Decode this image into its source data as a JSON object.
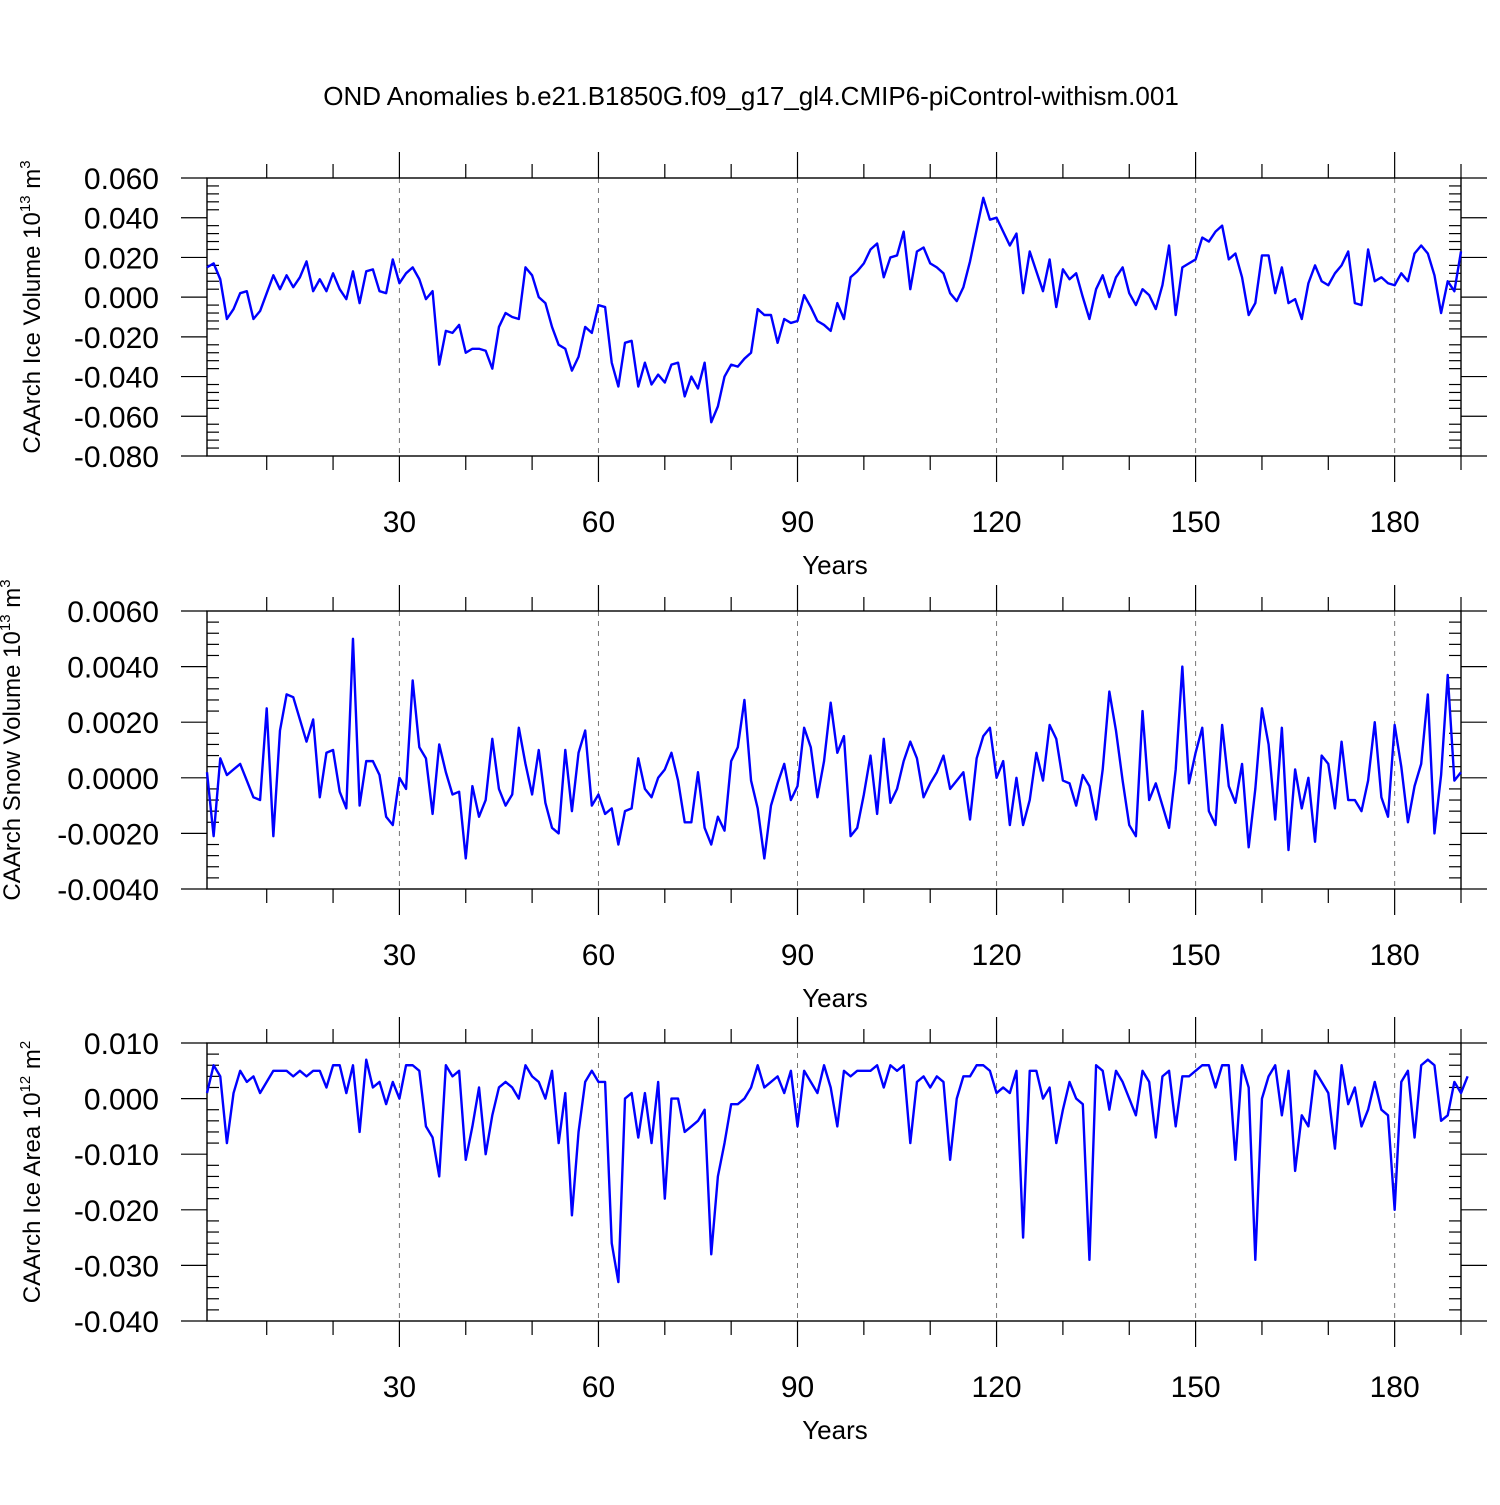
{
  "title": "OND Anomalies b.e21.B1850G.f09_g17_gl4.CMIP6-piControl-withism.001",
  "colors": {
    "line": "#0000ff",
    "grid": "#777777"
  },
  "chart_data": [
    {
      "type": "line",
      "name": "ice-volume",
      "ylabel_main": "CAArch Ice Volume 10",
      "ylabel_exp": "13",
      "ylabel_unit": " m",
      "ylabel_unit_exp": "3",
      "xlabel": "Years",
      "xlim": [
        1,
        190
      ],
      "ylim": [
        -0.08,
        0.06
      ],
      "xticks": [
        30,
        60,
        90,
        120,
        150,
        180
      ],
      "xtick_labels": [
        "30",
        "60",
        "90",
        "120",
        "150",
        "180"
      ],
      "yticks": [
        -0.08,
        -0.06,
        -0.04,
        -0.02,
        0.0,
        0.02,
        0.04,
        0.06
      ],
      "ytick_labels": [
        "-0.080",
        "-0.060",
        "-0.040",
        "-0.020",
        "0.000",
        "0.020",
        "0.040",
        "0.060"
      ],
      "x_start": 1,
      "values": [
        0.015,
        0.017,
        0.009,
        -0.011,
        -0.006,
        0.002,
        0.003,
        -0.011,
        -0.007,
        0.002,
        0.011,
        0.004,
        0.011,
        0.005,
        0.01,
        0.018,
        0.003,
        0.009,
        0.003,
        0.012,
        0.004,
        -0.001,
        0.013,
        -0.003,
        0.013,
        0.014,
        0.003,
        0.002,
        0.019,
        0.007,
        0.012,
        0.015,
        0.009,
        -0.001,
        0.003,
        -0.034,
        -0.017,
        -0.018,
        -0.014,
        -0.028,
        -0.026,
        -0.026,
        -0.027,
        -0.036,
        -0.015,
        -0.008,
        -0.01,
        -0.011,
        0.015,
        0.011,
        0.0,
        -0.003,
        -0.015,
        -0.024,
        -0.026,
        -0.037,
        -0.03,
        -0.015,
        -0.018,
        -0.004,
        -0.005,
        -0.033,
        -0.045,
        -0.023,
        -0.022,
        -0.045,
        -0.033,
        -0.044,
        -0.039,
        -0.043,
        -0.034,
        -0.033,
        -0.05,
        -0.04,
        -0.046,
        -0.033,
        -0.063,
        -0.055,
        -0.04,
        -0.034,
        -0.035,
        -0.031,
        -0.028,
        -0.006,
        -0.009,
        -0.009,
        -0.023,
        -0.011,
        -0.013,
        -0.012,
        0.001,
        -0.005,
        -0.012,
        -0.014,
        -0.017,
        -0.003,
        -0.011,
        0.01,
        0.013,
        0.017,
        0.024,
        0.027,
        0.01,
        0.02,
        0.021,
        0.033,
        0.004,
        0.023,
        0.025,
        0.017,
        0.015,
        0.012,
        0.002,
        -0.002,
        0.005,
        0.018,
        0.034,
        0.05,
        0.039,
        0.04,
        0.033,
        0.026,
        0.032,
        0.002,
        0.023,
        0.013,
        0.003,
        0.019,
        -0.005,
        0.014,
        0.009,
        0.012,
        0.0,
        -0.011,
        0.004,
        0.011,
        0.0,
        0.01,
        0.015,
        0.002,
        -0.004,
        0.004,
        0.001,
        -0.006,
        0.006,
        0.026,
        -0.009,
        0.015,
        0.017,
        0.019,
        0.03,
        0.028,
        0.033,
        0.036,
        0.019,
        0.022,
        0.01,
        -0.009,
        -0.003,
        0.021,
        0.021,
        0.002,
        0.015,
        -0.003,
        -0.001,
        -0.011,
        0.007,
        0.016,
        0.008,
        0.006,
        0.012,
        0.016,
        0.023,
        -0.003,
        -0.004,
        0.024,
        0.008,
        0.01,
        0.007,
        0.006,
        0.012,
        0.008,
        0.022,
        0.026,
        0.022,
        0.011,
        -0.008,
        0.008,
        0.003,
        0.023
      ]
    },
    {
      "type": "line",
      "name": "snow-volume",
      "ylabel_main": "CAArch Snow Volume 10",
      "ylabel_exp": "13",
      "ylabel_unit": " m",
      "ylabel_unit_exp": "3",
      "xlabel": "Years",
      "xlim": [
        1,
        190
      ],
      "ylim": [
        -0.004,
        0.006
      ],
      "xticks": [
        30,
        60,
        90,
        120,
        150,
        180
      ],
      "xtick_labels": [
        "30",
        "60",
        "90",
        "120",
        "150",
        "180"
      ],
      "yticks": [
        -0.004,
        -0.002,
        0.0,
        0.002,
        0.004,
        0.006
      ],
      "ytick_labels": [
        "-0.0040",
        "-0.0020",
        "0.0000",
        "0.0020",
        "0.0040",
        "0.0060"
      ],
      "x_start": 1,
      "values": [
        0.0002,
        -0.0021,
        0.0007,
        0.0001,
        0.0003,
        0.0005,
        -0.0001,
        -0.0007,
        -0.0008,
        0.0025,
        -0.0021,
        0.0017,
        0.003,
        0.0029,
        0.0021,
        0.0013,
        0.0021,
        -0.0007,
        0.0009,
        0.001,
        -0.0005,
        -0.0011,
        0.005,
        -0.001,
        0.0006,
        0.0006,
        0.0001,
        -0.0014,
        -0.0017,
        0.0,
        -0.0004,
        0.0035,
        0.0011,
        0.0007,
        -0.0013,
        0.0012,
        0.0002,
        -0.0006,
        -0.0005,
        -0.0029,
        -0.0003,
        -0.0014,
        -0.0008,
        0.0014,
        -0.0004,
        -0.001,
        -0.0006,
        0.0018,
        0.0005,
        -0.0006,
        0.001,
        -0.0009,
        -0.0018,
        -0.002,
        0.001,
        -0.0012,
        0.0009,
        0.0017,
        -0.001,
        -0.0006,
        -0.0013,
        -0.0011,
        -0.0024,
        -0.0012,
        -0.0011,
        0.0007,
        -0.0004,
        -0.0007,
        0.0,
        0.0003,
        0.0009,
        -0.0001,
        -0.0016,
        -0.0016,
        0.0002,
        -0.0018,
        -0.0024,
        -0.0014,
        -0.0019,
        0.0006,
        0.0011,
        0.0028,
        -0.0001,
        -0.0011,
        -0.0029,
        -0.001,
        -0.0002,
        0.0005,
        -0.0008,
        -0.0003,
        0.0018,
        0.0011,
        -0.0007,
        0.0006,
        0.0027,
        0.0009,
        0.0015,
        -0.0021,
        -0.0018,
        -0.0006,
        0.0008,
        -0.0013,
        0.0014,
        -0.0009,
        -0.0004,
        0.0006,
        0.0013,
        0.0007,
        -0.0007,
        -0.0002,
        0.0002,
        0.0008,
        -0.0004,
        -0.0001,
        0.0002,
        -0.0015,
        0.0007,
        0.0015,
        0.0018,
        0.0,
        0.0006,
        -0.0017,
        0.0,
        -0.0017,
        -0.0008,
        0.0009,
        -0.0001,
        0.0019,
        0.0014,
        -0.0001,
        -0.0002,
        -0.001,
        0.0001,
        -0.0003,
        -0.0015,
        0.0003,
        0.0031,
        0.0017,
        -0.0001,
        -0.0017,
        -0.0021,
        0.0024,
        -0.0008,
        -0.0002,
        -0.001,
        -0.0018,
        0.0003,
        0.004,
        -0.0002,
        0.0009,
        0.0018,
        -0.0012,
        -0.0017,
        0.0019,
        -0.0003,
        -0.0009,
        0.0005,
        -0.0025,
        -0.0004,
        0.0025,
        0.0012,
        -0.0015,
        0.0018,
        -0.0026,
        0.0003,
        -0.0011,
        0.0,
        -0.0023,
        0.0008,
        0.0005,
        -0.0011,
        0.0013,
        -0.0008,
        -0.0008,
        -0.0012,
        -0.0001,
        0.002,
        -0.0007,
        -0.0014,
        0.0019,
        0.0004,
        -0.0016,
        -0.0003,
        0.0005,
        0.003,
        -0.002,
        0.0001,
        0.0037,
        -0.0001,
        0.0002
      ]
    },
    {
      "type": "line",
      "name": "ice-area",
      "ylabel_main": "CAArch Ice Area 10",
      "ylabel_exp": "12",
      "ylabel_unit": " m",
      "ylabel_unit_exp": "2",
      "xlabel": "Years",
      "xlim": [
        1,
        190
      ],
      "ylim": [
        -0.04,
        0.01
      ],
      "xticks": [
        30,
        60,
        90,
        120,
        150,
        180
      ],
      "xtick_labels": [
        "30",
        "60",
        "90",
        "120",
        "150",
        "180"
      ],
      "yticks": [
        -0.04,
        -0.03,
        -0.02,
        -0.01,
        0.0,
        0.01
      ],
      "ytick_labels": [
        "-0.040",
        "-0.030",
        "-0.020",
        "-0.010",
        "0.000",
        "0.010"
      ],
      "x_start": 1,
      "values": [
        0.001,
        0.006,
        0.004,
        -0.008,
        0.001,
        0.005,
        0.003,
        0.004,
        0.001,
        0.003,
        0.005,
        0.005,
        0.005,
        0.004,
        0.005,
        0.004,
        0.005,
        0.005,
        0.002,
        0.006,
        0.006,
        0.001,
        0.006,
        -0.006,
        0.007,
        0.002,
        0.003,
        -0.001,
        0.003,
        0.0,
        0.006,
        0.006,
        0.005,
        -0.005,
        -0.007,
        -0.014,
        0.006,
        0.004,
        0.005,
        -0.011,
        -0.005,
        0.002,
        -0.01,
        -0.003,
        0.002,
        0.003,
        0.002,
        0.0,
        0.006,
        0.004,
        0.003,
        0.0,
        0.005,
        -0.008,
        0.001,
        -0.021,
        -0.006,
        0.003,
        0.005,
        0.003,
        0.003,
        -0.026,
        -0.033,
        0.0,
        0.001,
        -0.007,
        0.001,
        -0.008,
        0.003,
        -0.018,
        0.0,
        0.0,
        -0.006,
        -0.005,
        -0.004,
        -0.002,
        -0.028,
        -0.014,
        -0.008,
        -0.001,
        -0.001,
        0.0,
        0.002,
        0.006,
        0.002,
        0.003,
        0.004,
        0.001,
        0.005,
        -0.005,
        0.005,
        0.003,
        0.001,
        0.006,
        0.002,
        -0.005,
        0.005,
        0.004,
        0.005,
        0.005,
        0.005,
        0.006,
        0.002,
        0.006,
        0.005,
        0.006,
        -0.008,
        0.003,
        0.004,
        0.002,
        0.004,
        0.003,
        -0.011,
        0.0,
        0.004,
        0.004,
        0.006,
        0.006,
        0.005,
        0.001,
        0.002,
        0.001,
        0.005,
        -0.025,
        0.005,
        0.005,
        0.0,
        0.002,
        -0.008,
        -0.002,
        0.003,
        0.0,
        -0.001,
        -0.029,
        0.006,
        0.005,
        -0.002,
        0.005,
        0.003,
        0.0,
        -0.003,
        0.005,
        0.003,
        -0.007,
        0.004,
        0.005,
        -0.005,
        0.004,
        0.004,
        0.005,
        0.006,
        0.006,
        0.002,
        0.006,
        0.006,
        -0.011,
        0.006,
        0.002,
        -0.029,
        0.0,
        0.004,
        0.006,
        -0.003,
        0.005,
        -0.013,
        -0.003,
        -0.005,
        0.005,
        0.003,
        0.001,
        -0.009,
        0.006,
        -0.001,
        0.002,
        -0.005,
        -0.002,
        0.003,
        -0.002,
        -0.003,
        -0.02,
        0.003,
        0.005,
        -0.007,
        0.006,
        0.007,
        0.006,
        -0.004,
        -0.003,
        0.003,
        0.001,
        0.004
      ]
    }
  ]
}
